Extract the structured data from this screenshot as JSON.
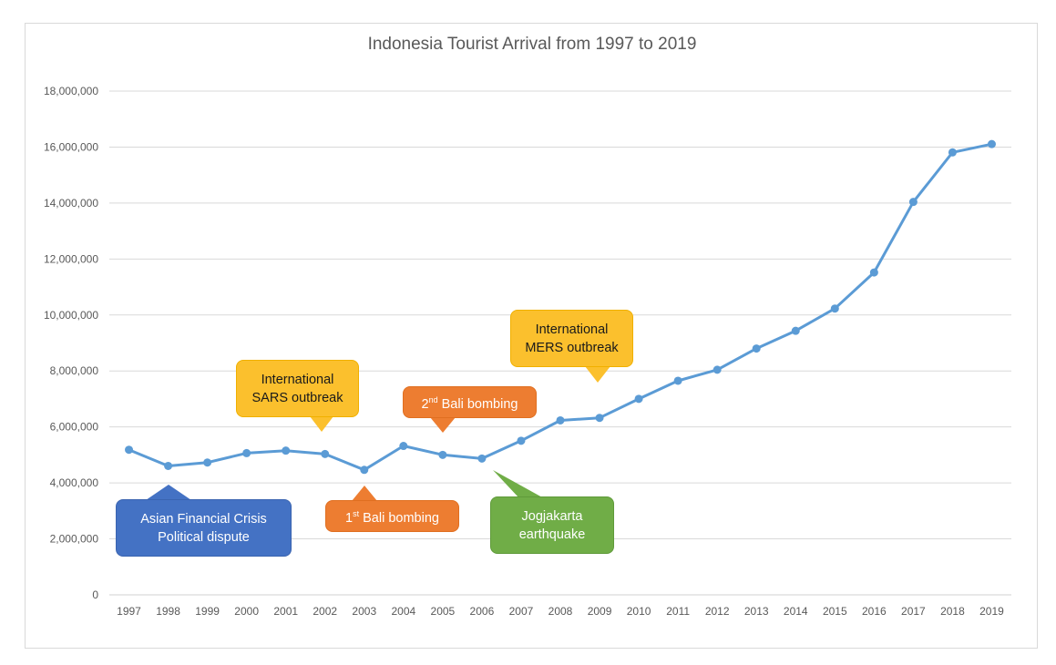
{
  "chart_data": {
    "type": "line",
    "title": "Indonesia Tourist Arrival from 1997 to 2019",
    "xlabel": "",
    "ylabel": "",
    "categories": [
      "1997",
      "1998",
      "1999",
      "2000",
      "2001",
      "2002",
      "2003",
      "2004",
      "2005",
      "2006",
      "2007",
      "2008",
      "2009",
      "2010",
      "2011",
      "2012",
      "2013",
      "2014",
      "2015",
      "2016",
      "2017",
      "2018",
      "2019"
    ],
    "series": [
      {
        "color": "#5b9bd5",
        "values": [
          5185000,
          4606000,
          4728000,
          5064000,
          5154000,
          5033000,
          4467000,
          5321000,
          5002000,
          4871000,
          5506000,
          6234000,
          6324000,
          7003000,
          7650000,
          8044000,
          8802000,
          9435000,
          10230000,
          11519000,
          14040000,
          15810000,
          16107000
        ]
      }
    ],
    "ylim": [
      0,
      18000000
    ],
    "yticks": [
      0,
      2000000,
      4000000,
      6000000,
      8000000,
      10000000,
      12000000,
      14000000,
      16000000,
      18000000
    ],
    "ytick_labels": [
      "0",
      "2,000,000",
      "4,000,000",
      "6,000,000",
      "8,000,000",
      "10,000,000",
      "12,000,000",
      "14,000,000",
      "16,000,000",
      "18,000,000"
    ],
    "grid": true,
    "legend": "none",
    "annotations": [
      {
        "id": "sars",
        "text": "International\nSARS outbreak",
        "color": "#fbc02d",
        "year": "2002"
      },
      {
        "id": "mers",
        "text": "International\nMERS outbreak",
        "color": "#fbc02d",
        "year": "2009"
      },
      {
        "id": "bali2",
        "text_main": "2",
        "text_sup": "nd",
        "text_rest": " Bali bombing",
        "color": "#ed7d31",
        "year": "2005"
      },
      {
        "id": "bali1",
        "text_main": "1",
        "text_sup": "st",
        "text_rest": " Bali bombing",
        "color": "#ed7d31",
        "year": "2003"
      },
      {
        "id": "asian",
        "text": "Asian Financial Crisis\nPolitical dispute",
        "color": "#4472c4",
        "year": "1998"
      },
      {
        "id": "jogja",
        "text": "Jogjakarta\nearthquake",
        "color": "#70ad47",
        "year": "2006"
      }
    ]
  }
}
